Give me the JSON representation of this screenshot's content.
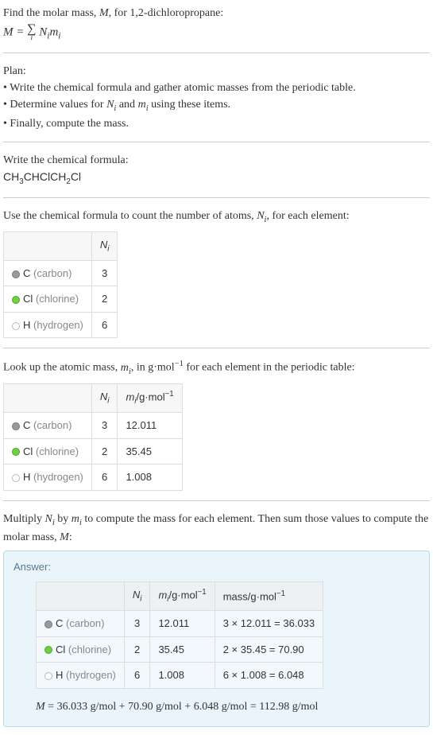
{
  "intro": {
    "line1_prefix": "Find the molar mass, ",
    "line1_var": "M",
    "line1_suffix": ", for 1,2-dichloropropane:",
    "equation_lhs": "M = ",
    "equation_rhs_a": "N",
    "equation_rhs_b": "m"
  },
  "plan": {
    "title": "Plan:",
    "bullet1": "• Write the chemical formula and gather atomic masses from the periodic table.",
    "bullet2_a": "• Determine values for ",
    "bullet2_b": " and ",
    "bullet2_c": " using these items.",
    "bullet3": "• Finally, compute the mass."
  },
  "chemformula": {
    "title": "Write the chemical formula:",
    "parts": [
      "CH",
      "3",
      "CHClCH",
      "2",
      "Cl"
    ]
  },
  "count_section": {
    "text_a": "Use the chemical formula to count the number of atoms, ",
    "text_b": ", for each element:"
  },
  "table1": {
    "header_Ni": "N",
    "rows": [
      {
        "dot": "dot-c",
        "sym": "C",
        "name": "(carbon)",
        "Ni": "3"
      },
      {
        "dot": "dot-cl",
        "sym": "Cl",
        "name": "(chlorine)",
        "Ni": "2"
      },
      {
        "dot": "dot-h",
        "sym": "H",
        "name": "(hydrogen)",
        "Ni": "6"
      }
    ]
  },
  "lookup_section": {
    "text_a": "Look up the atomic mass, ",
    "text_b": ", in g·mol",
    "text_c": " for each element in the periodic table:"
  },
  "table2": {
    "header_mi_a": "m",
    "header_mi_b": "/g·mol",
    "rows": [
      {
        "dot": "dot-c",
        "sym": "C",
        "name": "(carbon)",
        "Ni": "3",
        "mi": "12.011"
      },
      {
        "dot": "dot-cl",
        "sym": "Cl",
        "name": "(chlorine)",
        "Ni": "2",
        "mi": "35.45"
      },
      {
        "dot": "dot-h",
        "sym": "H",
        "name": "(hydrogen)",
        "Ni": "6",
        "mi": "1.008"
      }
    ]
  },
  "multiply_section": {
    "text_a": "Multiply ",
    "text_b": " by ",
    "text_c": " to compute the mass for each element. Then sum those values to compute the molar mass, ",
    "text_d": ":"
  },
  "answer": {
    "label": "Answer:",
    "header_mass": "mass/g·mol",
    "rows": [
      {
        "dot": "dot-c",
        "sym": "C",
        "name": "(carbon)",
        "Ni": "3",
        "mi": "12.011",
        "mass": "3 × 12.011 = 36.033"
      },
      {
        "dot": "dot-cl",
        "sym": "Cl",
        "name": "(chlorine)",
        "Ni": "2",
        "mi": "35.45",
        "mass": "2 × 35.45 = 70.90"
      },
      {
        "dot": "dot-h",
        "sym": "H",
        "name": "(hydrogen)",
        "Ni": "6",
        "mi": "1.008",
        "mass": "6 × 1.008 = 6.048"
      }
    ],
    "final_a": "M",
    "final_b": " = 36.033 g/mol + 70.90 g/mol + 6.048 g/mol = 112.98 g/mol"
  },
  "colors": {
    "bg": "#ffffff",
    "text": "#333333",
    "hr": "#cccccc",
    "table_border": "#dddddd",
    "table_header_bg": "#f7f7f7",
    "elem_gray": "#888888",
    "answer_bg": "#e9f4fb",
    "answer_border": "#b8d8ea",
    "dot_c": "#9a9a9a",
    "dot_cl": "#6fcf3f",
    "dot_h": "#ffffff"
  }
}
